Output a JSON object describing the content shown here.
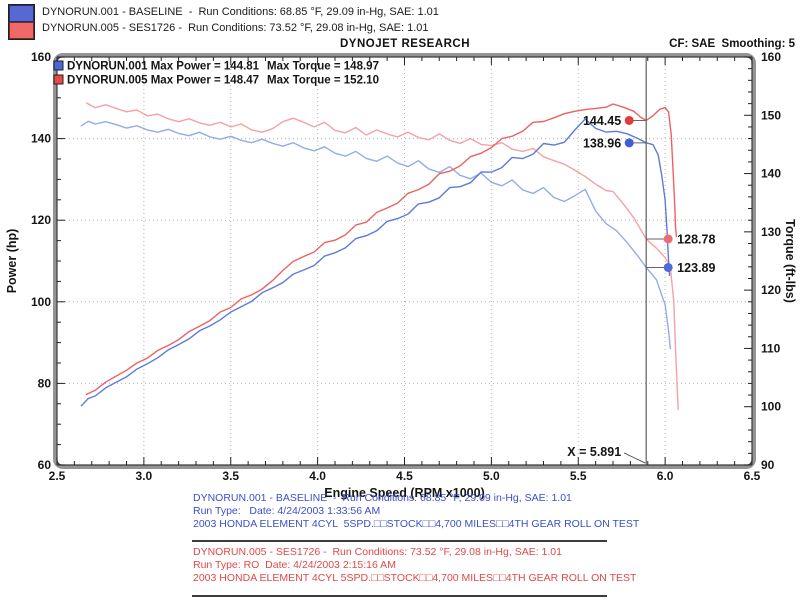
{
  "header": {
    "legend": [
      {
        "label": "DYNORUN.001 - BASELINE  -  Run Conditions: 68.85 °F, 29.09 in-Hg, SAE: 1.01",
        "color": "#5868d2"
      },
      {
        "label": "DYNORUN.005 - SES1726 -  Run Conditions: 73.52 °F, 29.08 in-Hg, SAE: 1.01",
        "color": "#f06868"
      }
    ],
    "title": "DYNOJET RESEARCH",
    "cf": "CF: SAE  Smoothing: 5"
  },
  "chart_data": {
    "type": "line",
    "title": "DYNOJET RESEARCH",
    "xlabel": "Engine Speed (RPM x1000)",
    "ylabel_left": "Power (hp)",
    "ylabel_right": "Torque (ft-lbs)",
    "xlim": [
      2.5,
      6.5
    ],
    "x_major": 0.5,
    "x_minor": 0.1,
    "ylim_left": [
      60,
      160
    ],
    "y_left_major": 20,
    "y_left_minor": 5,
    "ylim_right": [
      90,
      160
    ],
    "y_right_major": 10,
    "y_right_minor": 2,
    "x_ticks": [
      "2.5",
      "3.0",
      "3.5",
      "4.0",
      "4.5",
      "5.0",
      "5.5",
      "6.0",
      "6.5"
    ],
    "y_left_ticks": [
      "60",
      "80",
      "100",
      "120",
      "140",
      "160"
    ],
    "y_right_ticks": [
      "90",
      "100",
      "110",
      "120",
      "130",
      "140",
      "150",
      "160"
    ],
    "grid_x": [
      3.0,
      3.5,
      4.0,
      4.5,
      5.0,
      5.5,
      6.0
    ],
    "grid_y_power": [
      80,
      100,
      120,
      140
    ],
    "legend_inplot": [
      {
        "run": "DYNORUN.001",
        "max_power_label": "Max Power = 144.81",
        "max_torque_label": "Max Torque = 148.97",
        "max_power": 144.81,
        "max_torque": 148.97,
        "color": "#4a66d8"
      },
      {
        "run": "DYNORUN.005",
        "max_power_label": "Max Power = 148.47",
        "max_torque_label": "Max Torque = 152.10",
        "max_power": 148.47,
        "max_torque": 152.1,
        "color": "#e84848"
      }
    ],
    "cursor": {
      "x": 5.891,
      "label": "X = 5.891"
    },
    "callouts": [
      {
        "value": "144.45",
        "y": 144.45,
        "axis": "power",
        "side": "left",
        "color": "#e23d3d"
      },
      {
        "value": "138.96",
        "y": 138.96,
        "axis": "power",
        "side": "left",
        "color": "#3f5ed6"
      },
      {
        "value": "128.78",
        "y": 128.78,
        "axis": "torque",
        "side": "right",
        "color": "#ed6b76"
      },
      {
        "value": "123.89",
        "y": 123.89,
        "axis": "torque",
        "side": "right",
        "color": "#4e6ada"
      }
    ],
    "series": [
      {
        "name": "DYNORUN.001 Torque",
        "axis": "torque",
        "color": "#95abe9",
        "points": [
          [
            2.64,
            148.2
          ],
          [
            2.68,
            148.97
          ],
          [
            2.72,
            148.5
          ],
          [
            2.78,
            148.9
          ],
          [
            2.84,
            148.4
          ],
          [
            2.9,
            147.8
          ],
          [
            2.96,
            148.2
          ],
          [
            3.02,
            147.5
          ],
          [
            3.08,
            147.1
          ],
          [
            3.14,
            147.6
          ],
          [
            3.2,
            146.9
          ],
          [
            3.26,
            146.5
          ],
          [
            3.32,
            147.1
          ],
          [
            3.38,
            146.3
          ],
          [
            3.44,
            145.9
          ],
          [
            3.5,
            146.4
          ],
          [
            3.56,
            145.7
          ],
          [
            3.62,
            145.3
          ],
          [
            3.68,
            145.9
          ],
          [
            3.74,
            145.2
          ],
          [
            3.8,
            144.7
          ],
          [
            3.86,
            145.3
          ],
          [
            3.92,
            144.4
          ],
          [
            3.98,
            143.9
          ],
          [
            4.04,
            144.6
          ],
          [
            4.1,
            143.5
          ],
          [
            4.16,
            143.0
          ],
          [
            4.22,
            143.8
          ],
          [
            4.28,
            142.6
          ],
          [
            4.34,
            142.1
          ],
          [
            4.4,
            143.0
          ],
          [
            4.46,
            141.8
          ],
          [
            4.52,
            141.2
          ],
          [
            4.58,
            142.2
          ],
          [
            4.64,
            140.8
          ],
          [
            4.7,
            140.2
          ],
          [
            4.76,
            141.2
          ],
          [
            4.82,
            139.7
          ],
          [
            4.88,
            139.1
          ],
          [
            4.94,
            140.1
          ],
          [
            5.0,
            138.5
          ],
          [
            5.06,
            137.9
          ],
          [
            5.12,
            138.9
          ],
          [
            5.18,
            137.2
          ],
          [
            5.24,
            136.6
          ],
          [
            5.3,
            137.6
          ],
          [
            5.36,
            135.9
          ],
          [
            5.42,
            135.2
          ],
          [
            5.48,
            136.2
          ],
          [
            5.54,
            137.3
          ],
          [
            5.6,
            133.6
          ],
          [
            5.66,
            131.4
          ],
          [
            5.72,
            130.2
          ],
          [
            5.78,
            128.2
          ],
          [
            5.84,
            126.0
          ],
          [
            5.891,
            123.89
          ],
          [
            5.95,
            121.8
          ],
          [
            6.0,
            117.5
          ],
          [
            6.02,
            113.0
          ],
          [
            6.03,
            110.0
          ]
        ]
      },
      {
        "name": "DYNORUN.005 Torque",
        "axis": "torque",
        "color": "#f4a2a6",
        "points": [
          [
            2.67,
            152.1
          ],
          [
            2.72,
            151.3
          ],
          [
            2.78,
            151.8
          ],
          [
            2.84,
            151.2
          ],
          [
            2.9,
            150.6
          ],
          [
            2.96,
            150.9
          ],
          [
            3.02,
            149.9
          ],
          [
            3.08,
            150.2
          ],
          [
            3.14,
            149.4
          ],
          [
            3.2,
            148.9
          ],
          [
            3.26,
            149.4
          ],
          [
            3.32,
            148.7
          ],
          [
            3.38,
            148.3
          ],
          [
            3.44,
            148.8
          ],
          [
            3.5,
            148.0
          ],
          [
            3.56,
            148.5
          ],
          [
            3.62,
            147.5
          ],
          [
            3.68,
            147.1
          ],
          [
            3.74,
            147.7
          ],
          [
            3.8,
            148.9
          ],
          [
            3.86,
            149.5
          ],
          [
            3.92,
            148.8
          ],
          [
            3.98,
            148.0
          ],
          [
            4.04,
            148.8
          ],
          [
            4.1,
            147.4
          ],
          [
            4.16,
            147.0
          ],
          [
            4.22,
            147.9
          ],
          [
            4.28,
            146.6
          ],
          [
            4.34,
            147.5
          ],
          [
            4.4,
            146.8
          ],
          [
            4.46,
            146.3
          ],
          [
            4.52,
            147.1
          ],
          [
            4.58,
            146.2
          ],
          [
            4.64,
            145.8
          ],
          [
            4.7,
            146.8
          ],
          [
            4.76,
            145.7
          ],
          [
            4.82,
            145.2
          ],
          [
            4.88,
            146.0
          ],
          [
            4.94,
            145.0
          ],
          [
            5.0,
            144.8
          ],
          [
            5.06,
            145.3
          ],
          [
            5.12,
            144.2
          ],
          [
            5.18,
            143.8
          ],
          [
            5.24,
            144.3
          ],
          [
            5.3,
            142.9
          ],
          [
            5.36,
            142.2
          ],
          [
            5.42,
            141.6
          ],
          [
            5.48,
            140.6
          ],
          [
            5.54,
            139.5
          ],
          [
            5.6,
            138.2
          ],
          [
            5.66,
            137.1
          ],
          [
            5.7,
            136.9
          ],
          [
            5.76,
            134.8
          ],
          [
            5.82,
            132.4
          ],
          [
            5.891,
            128.78
          ],
          [
            5.95,
            127.2
          ],
          [
            6.0,
            125.6
          ],
          [
            6.03,
            124.0
          ],
          [
            6.05,
            118.0
          ],
          [
            6.06,
            110.0
          ],
          [
            6.07,
            103.0
          ],
          [
            6.075,
            99.5
          ]
        ]
      },
      {
        "name": "DYNORUN.001 Power",
        "axis": "power",
        "color": "#5e7ada",
        "points": [
          [
            2.64,
            74.5
          ],
          [
            2.68,
            76.3
          ],
          [
            2.72,
            76.9
          ],
          [
            2.78,
            78.9
          ],
          [
            2.84,
            80.3
          ],
          [
            2.9,
            81.6
          ],
          [
            2.96,
            83.5
          ],
          [
            3.02,
            84.8
          ],
          [
            3.08,
            86.3
          ],
          [
            3.14,
            88.2
          ],
          [
            3.2,
            89.5
          ],
          [
            3.26,
            90.9
          ],
          [
            3.32,
            92.9
          ],
          [
            3.38,
            94.1
          ],
          [
            3.44,
            95.6
          ],
          [
            3.5,
            97.5
          ],
          [
            3.56,
            98.8
          ],
          [
            3.62,
            100.1
          ],
          [
            3.68,
            102.2
          ],
          [
            3.74,
            103.4
          ],
          [
            3.8,
            104.7
          ],
          [
            3.86,
            106.8
          ],
          [
            3.92,
            107.8
          ],
          [
            3.98,
            108.9
          ],
          [
            4.04,
            111.2
          ],
          [
            4.1,
            112.0
          ],
          [
            4.16,
            113.2
          ],
          [
            4.22,
            115.5
          ],
          [
            4.28,
            116.2
          ],
          [
            4.34,
            117.4
          ],
          [
            4.4,
            119.7
          ],
          [
            4.46,
            120.4
          ],
          [
            4.52,
            121.5
          ],
          [
            4.58,
            124.0
          ],
          [
            4.64,
            124.4
          ],
          [
            4.7,
            125.5
          ],
          [
            4.76,
            128.0
          ],
          [
            4.82,
            128.2
          ],
          [
            4.88,
            129.2
          ],
          [
            4.94,
            131.8
          ],
          [
            5.0,
            131.8
          ],
          [
            5.06,
            132.9
          ],
          [
            5.12,
            135.4
          ],
          [
            5.18,
            135.1
          ],
          [
            5.24,
            136.2
          ],
          [
            5.3,
            138.8
          ],
          [
            5.36,
            138.4
          ],
          [
            5.42,
            139.1
          ],
          [
            5.48,
            142.1
          ],
          [
            5.54,
            144.81
          ],
          [
            5.6,
            142.5
          ],
          [
            5.66,
            141.6
          ],
          [
            5.72,
            141.8
          ],
          [
            5.78,
            141.2
          ],
          [
            5.84,
            140.1
          ],
          [
            5.891,
            138.96
          ],
          [
            5.93,
            138.5
          ],
          [
            5.96,
            136.0
          ],
          [
            5.98,
            131.0
          ],
          [
            6.0,
            125.0
          ],
          [
            6.01,
            118.0
          ],
          [
            6.02,
            110.0
          ],
          [
            6.025,
            106.5
          ]
        ]
      },
      {
        "name": "DYNORUN.005 Power",
        "axis": "power",
        "color": "#ea6262",
        "points": [
          [
            2.67,
            77.3
          ],
          [
            2.72,
            78.3
          ],
          [
            2.78,
            80.3
          ],
          [
            2.84,
            81.8
          ],
          [
            2.9,
            83.2
          ],
          [
            2.96,
            85.0
          ],
          [
            3.02,
            86.2
          ],
          [
            3.08,
            88.1
          ],
          [
            3.14,
            89.3
          ],
          [
            3.2,
            90.7
          ],
          [
            3.26,
            92.7
          ],
          [
            3.32,
            94.0
          ],
          [
            3.38,
            95.4
          ],
          [
            3.44,
            97.5
          ],
          [
            3.5,
            98.6
          ],
          [
            3.56,
            100.7
          ],
          [
            3.62,
            101.7
          ],
          [
            3.68,
            103.1
          ],
          [
            3.74,
            105.2
          ],
          [
            3.8,
            107.7
          ],
          [
            3.86,
            109.9
          ],
          [
            3.92,
            111.1
          ],
          [
            3.98,
            112.2
          ],
          [
            4.04,
            114.5
          ],
          [
            4.1,
            115.1
          ],
          [
            4.16,
            116.4
          ],
          [
            4.22,
            118.8
          ],
          [
            4.28,
            119.5
          ],
          [
            4.34,
            121.9
          ],
          [
            4.4,
            123.0
          ],
          [
            4.46,
            124.2
          ],
          [
            4.52,
            126.6
          ],
          [
            4.58,
            127.5
          ],
          [
            4.64,
            128.8
          ],
          [
            4.7,
            131.4
          ],
          [
            4.76,
            132.0
          ],
          [
            4.82,
            133.3
          ],
          [
            4.88,
            135.6
          ],
          [
            4.94,
            136.4
          ],
          [
            5.0,
            137.8
          ],
          [
            5.06,
            140.0
          ],
          [
            5.12,
            140.6
          ],
          [
            5.18,
            141.8
          ],
          [
            5.24,
            144.0
          ],
          [
            5.3,
            144.2
          ],
          [
            5.36,
            145.1
          ],
          [
            5.42,
            146.1
          ],
          [
            5.48,
            146.7
          ],
          [
            5.54,
            147.1
          ],
          [
            5.6,
            147.4
          ],
          [
            5.66,
            147.7
          ],
          [
            5.7,
            148.47
          ],
          [
            5.76,
            147.7
          ],
          [
            5.82,
            146.7
          ],
          [
            5.86,
            145.2
          ],
          [
            5.891,
            144.45
          ],
          [
            5.93,
            145.6
          ],
          [
            5.97,
            147.2
          ],
          [
            6.0,
            147.6
          ],
          [
            6.02,
            146.5
          ],
          [
            6.035,
            141.0
          ],
          [
            6.045,
            133.0
          ],
          [
            6.055,
            124.0
          ],
          [
            6.06,
            118.5
          ],
          [
            6.065,
            116.0
          ]
        ]
      }
    ]
  },
  "footer": {
    "runs": [
      {
        "color": "#3a50c8",
        "lines": [
          "DYNORUN.001 - BASELINE  -  Run Conditions: 68.85 °F, 29.09 in-Hg, SAE: 1.01",
          "Run Type:   Date: 4/24/2003 1:33:56 AM",
          "2003 HONDA ELEMENT 4CYL  5SPD.□□STOCK□□4,700 MILES□□4TH GEAR ROLL ON TEST"
        ]
      },
      {
        "color": "#e04848",
        "lines": [
          "DYNORUN.005 - SES1726 -  Run Conditions: 73.52 °F, 29.08 in-Hg, SAE: 1.01",
          "Run Type: RO  Date: 4/24/2003 2:15:16 AM",
          "2003 HONDA ELEMENT 4CYL 5SPD.□□STOCK□□4,700 MILES□□4TH GEAR ROLL ON TEST"
        ]
      }
    ]
  }
}
